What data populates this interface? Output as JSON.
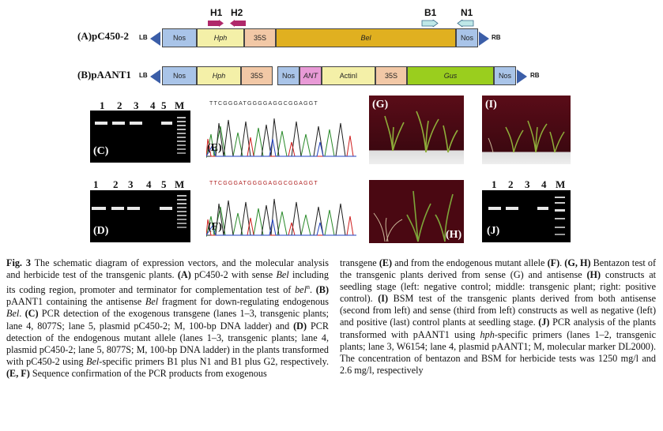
{
  "vector_a": {
    "label": "(A)pC450-2",
    "lb": "LB",
    "rb": "RB",
    "primers": {
      "h1": "H1",
      "h2": "H2",
      "b1": "B1",
      "n1": "N1"
    },
    "segments": [
      "Nos",
      "Hph",
      "35S",
      "Bel",
      "Nos"
    ]
  },
  "vector_b": {
    "label": "(B)pAANT1",
    "lb": "LB",
    "rb": "RB",
    "segments": [
      "Nos",
      "Hph",
      "35S",
      "Nos",
      "ANT",
      "ActinI",
      "35S",
      "Gus",
      "Nos"
    ]
  },
  "panels": {
    "c": {
      "letter": "(C)",
      "lanes": [
        "1",
        "2",
        "3",
        "4",
        "5",
        "M"
      ]
    },
    "d": {
      "letter": "(D)",
      "lanes": [
        "1",
        "2",
        "3",
        "4",
        "5",
        "M"
      ]
    },
    "e": {
      "letter": "(E)",
      "sequence": "TTCGGGATGGGGAGGCGGAGGT"
    },
    "f": {
      "letter": "(F)",
      "sequence": "TTCGGGATGGGGAGGCGGAGGT"
    },
    "g": {
      "letter": "(G)"
    },
    "h": {
      "letter": "(H)"
    },
    "i": {
      "letter": "(I)"
    },
    "j": {
      "letter": "(J)",
      "lanes": [
        "1",
        "2",
        "3",
        "4",
        "M"
      ]
    }
  },
  "caption_left": {
    "fig": "Fig. 3",
    "t1": " The schematic diagram of expression vectors, and the molecular analysis and herbicide test of the transgenic plants. ",
    "a": "(A)",
    "t2": " pC450-2 with sense ",
    "bel1": "Bel",
    "t3": " including its coding region, promoter and terminator for complementation test of ",
    "bel2": "bel",
    "sup": "n",
    "t4": ". ",
    "b": "(B)",
    "t5": " pAANT1 containing the antisense ",
    "bel3": "Bel",
    "t6": " fragment for down-regulating endogenous ",
    "bel4": "Bel",
    "t7": ". ",
    "c": "(C)",
    "t8": " PCR detection of the exogenous transgene (lanes 1–3, transgenic plants; lane 4, 8077S; lane 5, plasmid pC450-2; M, 100-bp DNA ladder) and ",
    "d": "(D)",
    "t9": " PCR detection of the endogenous mutant allele (lanes 1–3, transgenic plants; lane 4, plasmid pC450-2; lane 5, 8077S; M, 100-bp DNA ladder) in the plants transformed with pC450-2 using ",
    "bel5": "Bel",
    "t10": "-specific primers B1 plus N1 and B1 plus G2, respectively. ",
    "ef": "(E, F)",
    "t11": " Sequence confirmation of the PCR products from exogenous"
  },
  "caption_right": {
    "t1": "transgene ",
    "e": "(E)",
    "t2": " and from the endogenous mutant allele ",
    "f": "(F)",
    "t3": ". ",
    "gh": "(G, H)",
    "t4": " Bentazon test of the transgenic plants derived from sense (G) and antisense ",
    "h": "(H)",
    "t5": " constructs at seedling stage (left: negative control; middle: transgenic plant; right: positive control). ",
    "i": "(I)",
    "t6": " BSM test of the transgenic plants derived from both antisense (second from left) and sense (third from left) constructs as well as negative (left) and positive (last) control plants at seedling stage. ",
    "j": "(J)",
    "t7": " PCR analysis of the plants transformed with pAANT1 using ",
    "hph": "hph",
    "t8": "-specific primers (lanes 1–2, transgenic plants; lane 3, W6154; lane 4, plasmid pAANT1; M, molecular marker DL2000). The concentration of bentazon and BSM for herbicide tests was 1250 mg/l and 2.6 mg/l, respectively"
  }
}
